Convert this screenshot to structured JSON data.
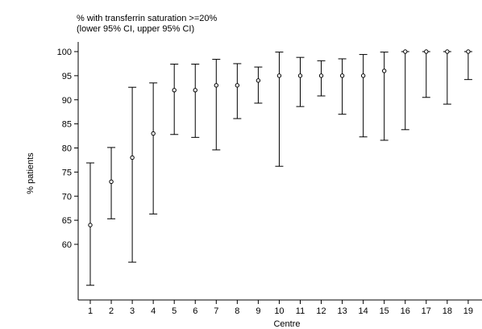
{
  "chart_data": {
    "type": "scatter",
    "title": "% with transferrin saturation >=20%",
    "subtitle": "(lower 95% CI, upper 95% CI)",
    "xlabel": "Centre",
    "ylabel": "% patients",
    "ylim": [
      50,
      101
    ],
    "yticks": [
      60,
      65,
      70,
      75,
      80,
      85,
      90,
      95,
      100
    ],
    "categories": [
      "1",
      "2",
      "3",
      "4",
      "5",
      "6",
      "7",
      "8",
      "9",
      "10",
      "11",
      "12",
      "13",
      "14",
      "15",
      "16",
      "17",
      "18",
      "19"
    ],
    "series": [
      {
        "values": [
          64,
          73,
          78,
          83,
          92,
          92,
          93,
          93,
          94,
          95,
          95,
          95,
          95,
          95,
          96,
          100,
          100,
          100,
          100
        ],
        "lower": [
          51.5,
          65.3,
          56.3,
          66.3,
          82.8,
          82.2,
          79.6,
          86.1,
          89.3,
          76.2,
          88.6,
          90.8,
          87.0,
          82.3,
          81.6,
          83.8,
          90.5,
          89.1,
          94.2
        ],
        "upper": [
          76.9,
          80.1,
          92.6,
          93.5,
          97.4,
          97.4,
          98.4,
          97.5,
          96.8,
          99.9,
          98.8,
          98.1,
          98.5,
          99.4,
          99.9,
          100,
          100,
          100,
          100
        ]
      }
    ],
    "legend": "none",
    "grid": false
  }
}
